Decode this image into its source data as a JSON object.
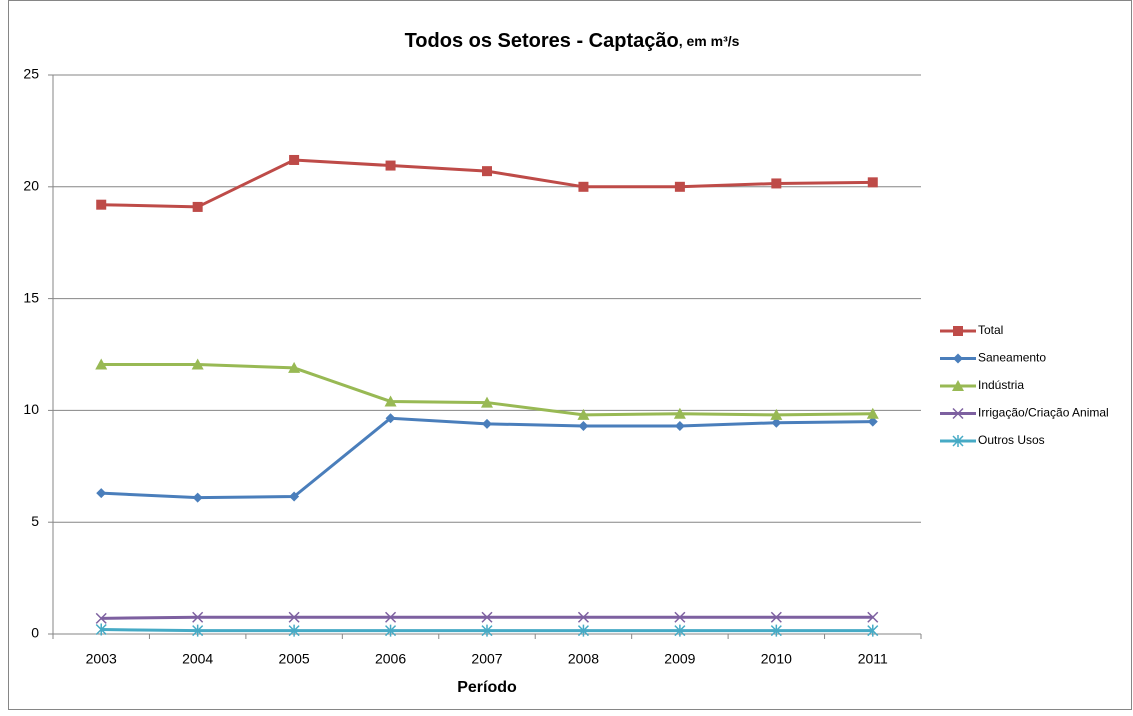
{
  "chart_data": {
    "type": "line",
    "title": "Todos os Setores - Captação",
    "subtitle": ", em m³/s",
    "x_label": "Período",
    "categories": [
      "2003",
      "2004",
      "2005",
      "2006",
      "2007",
      "2008",
      "2009",
      "2010",
      "2011"
    ],
    "series": [
      {
        "name": "Total",
        "color": "#be4b48",
        "marker": "square",
        "values": [
          19.2,
          19.1,
          21.2,
          20.95,
          20.7,
          20.0,
          20.0,
          20.15,
          20.2
        ]
      },
      {
        "name": "Saneamento",
        "color": "#4a7ebb",
        "marker": "diamond",
        "values": [
          6.3,
          6.1,
          6.15,
          9.65,
          9.4,
          9.3,
          9.3,
          9.45,
          9.5
        ]
      },
      {
        "name": "Indústria",
        "color": "#98b954",
        "marker": "triangle",
        "values": [
          12.05,
          12.05,
          11.9,
          10.4,
          10.35,
          9.8,
          9.85,
          9.8,
          9.85
        ]
      },
      {
        "name": "Irrigação/Criação Animal",
        "color": "#7d60a0",
        "marker": "x",
        "values": [
          0.7,
          0.75,
          0.75,
          0.75,
          0.75,
          0.75,
          0.75,
          0.75,
          0.75
        ]
      },
      {
        "name": "Outros Usos",
        "color": "#46aac5",
        "marker": "asterisk",
        "values": [
          0.2,
          0.15,
          0.15,
          0.15,
          0.15,
          0.15,
          0.15,
          0.15,
          0.15
        ]
      }
    ],
    "ylim": [
      0,
      25
    ],
    "yticks": [
      0,
      5,
      10,
      15,
      20,
      25
    ],
    "grid": true,
    "legend": "right"
  }
}
